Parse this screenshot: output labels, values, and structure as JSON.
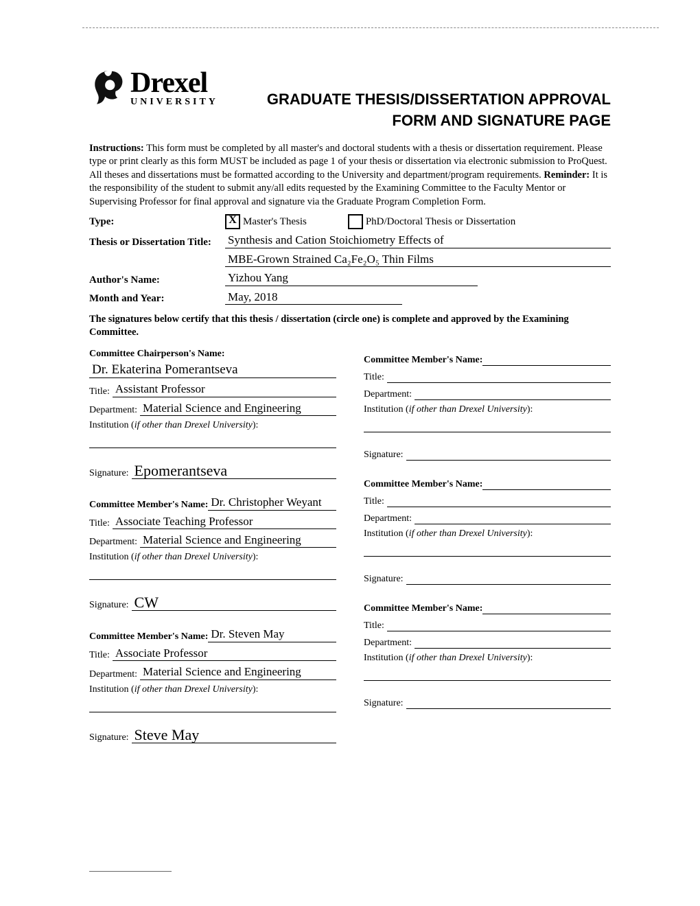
{
  "logo": {
    "top": "Drexel",
    "bottom": "UNIVERSITY"
  },
  "title": {
    "line1": "GRADUATE THESIS/DISSERTATION APPROVAL",
    "line2": "FORM AND SIGNATURE PAGE"
  },
  "instructions": {
    "label": "Instructions:",
    "body_a": " This form must be completed by all master's and doctoral students with a thesis or dissertation requirement. Please type or print clearly as this form MUST be included as page 1 of your thesis or dissertation via electronic submission to ProQuest. All theses and dissertations must be formatted according to the University and department/program requirements. ",
    "reminder_label": "Reminder:",
    "body_b": " It is the responsibility of the student to submit any/all edits requested by the Examining Committee to the Faculty Mentor or Supervising Professor for final approval and signature via the Graduate Program Completion Form."
  },
  "type": {
    "label": "Type:",
    "masters_checked": "X",
    "masters_label": "Master's Thesis",
    "phd_checked": "",
    "phd_label": "PhD/Doctoral Thesis or Dissertation"
  },
  "thesis_title": {
    "label": "Thesis or Dissertation Title:",
    "line1": "Synthesis and Cation Stoichiometry Effects of",
    "line2": "MBE-Grown Strained Ca₂Fe₂O₅ Thin Films"
  },
  "author": {
    "label": "Author's Name:",
    "value": "Yizhou Yang"
  },
  "date": {
    "label": "Month and Year:",
    "value": "May, 2018"
  },
  "certification": "The signatures below certify that this thesis / dissertation (circle one) is complete and approved by the Examining Committee.",
  "labels": {
    "chair_header": "Committee Chairperson's Name:",
    "member_header": "Committee Member's Name:",
    "title": "Title:",
    "department": "Department:",
    "institution_a": "Institution (",
    "institution_b": "if other than Drexel University",
    "institution_c": "):",
    "signature": "Signature:"
  },
  "left_blocks": [
    {
      "header_key": "chair_header",
      "name": "Dr. Ekaterina Pomerantseva",
      "title": "Assistant Professor",
      "department": "Material Science and Engineering",
      "institution": "",
      "signature": "Epomerantseva"
    },
    {
      "header_key": "member_header",
      "name": "Dr. Christopher Weyant",
      "title": "Associate Teaching Professor",
      "department": "Material Science and Engineering",
      "institution": "",
      "signature": "CW"
    },
    {
      "header_key": "member_header",
      "name": "Dr. Steven May",
      "title": "Associate Professor",
      "department": "Material Science and Engineering",
      "institution": "",
      "signature": "Steve May"
    }
  ],
  "right_blocks": [
    {
      "header_key": "member_header",
      "name": "",
      "title": "",
      "department": "",
      "institution": "",
      "signature": ""
    },
    {
      "header_key": "member_header",
      "name": "",
      "title": "",
      "department": "",
      "institution": "",
      "signature": ""
    },
    {
      "header_key": "member_header",
      "name": "",
      "title": "",
      "department": "",
      "institution": "",
      "signature": ""
    }
  ]
}
